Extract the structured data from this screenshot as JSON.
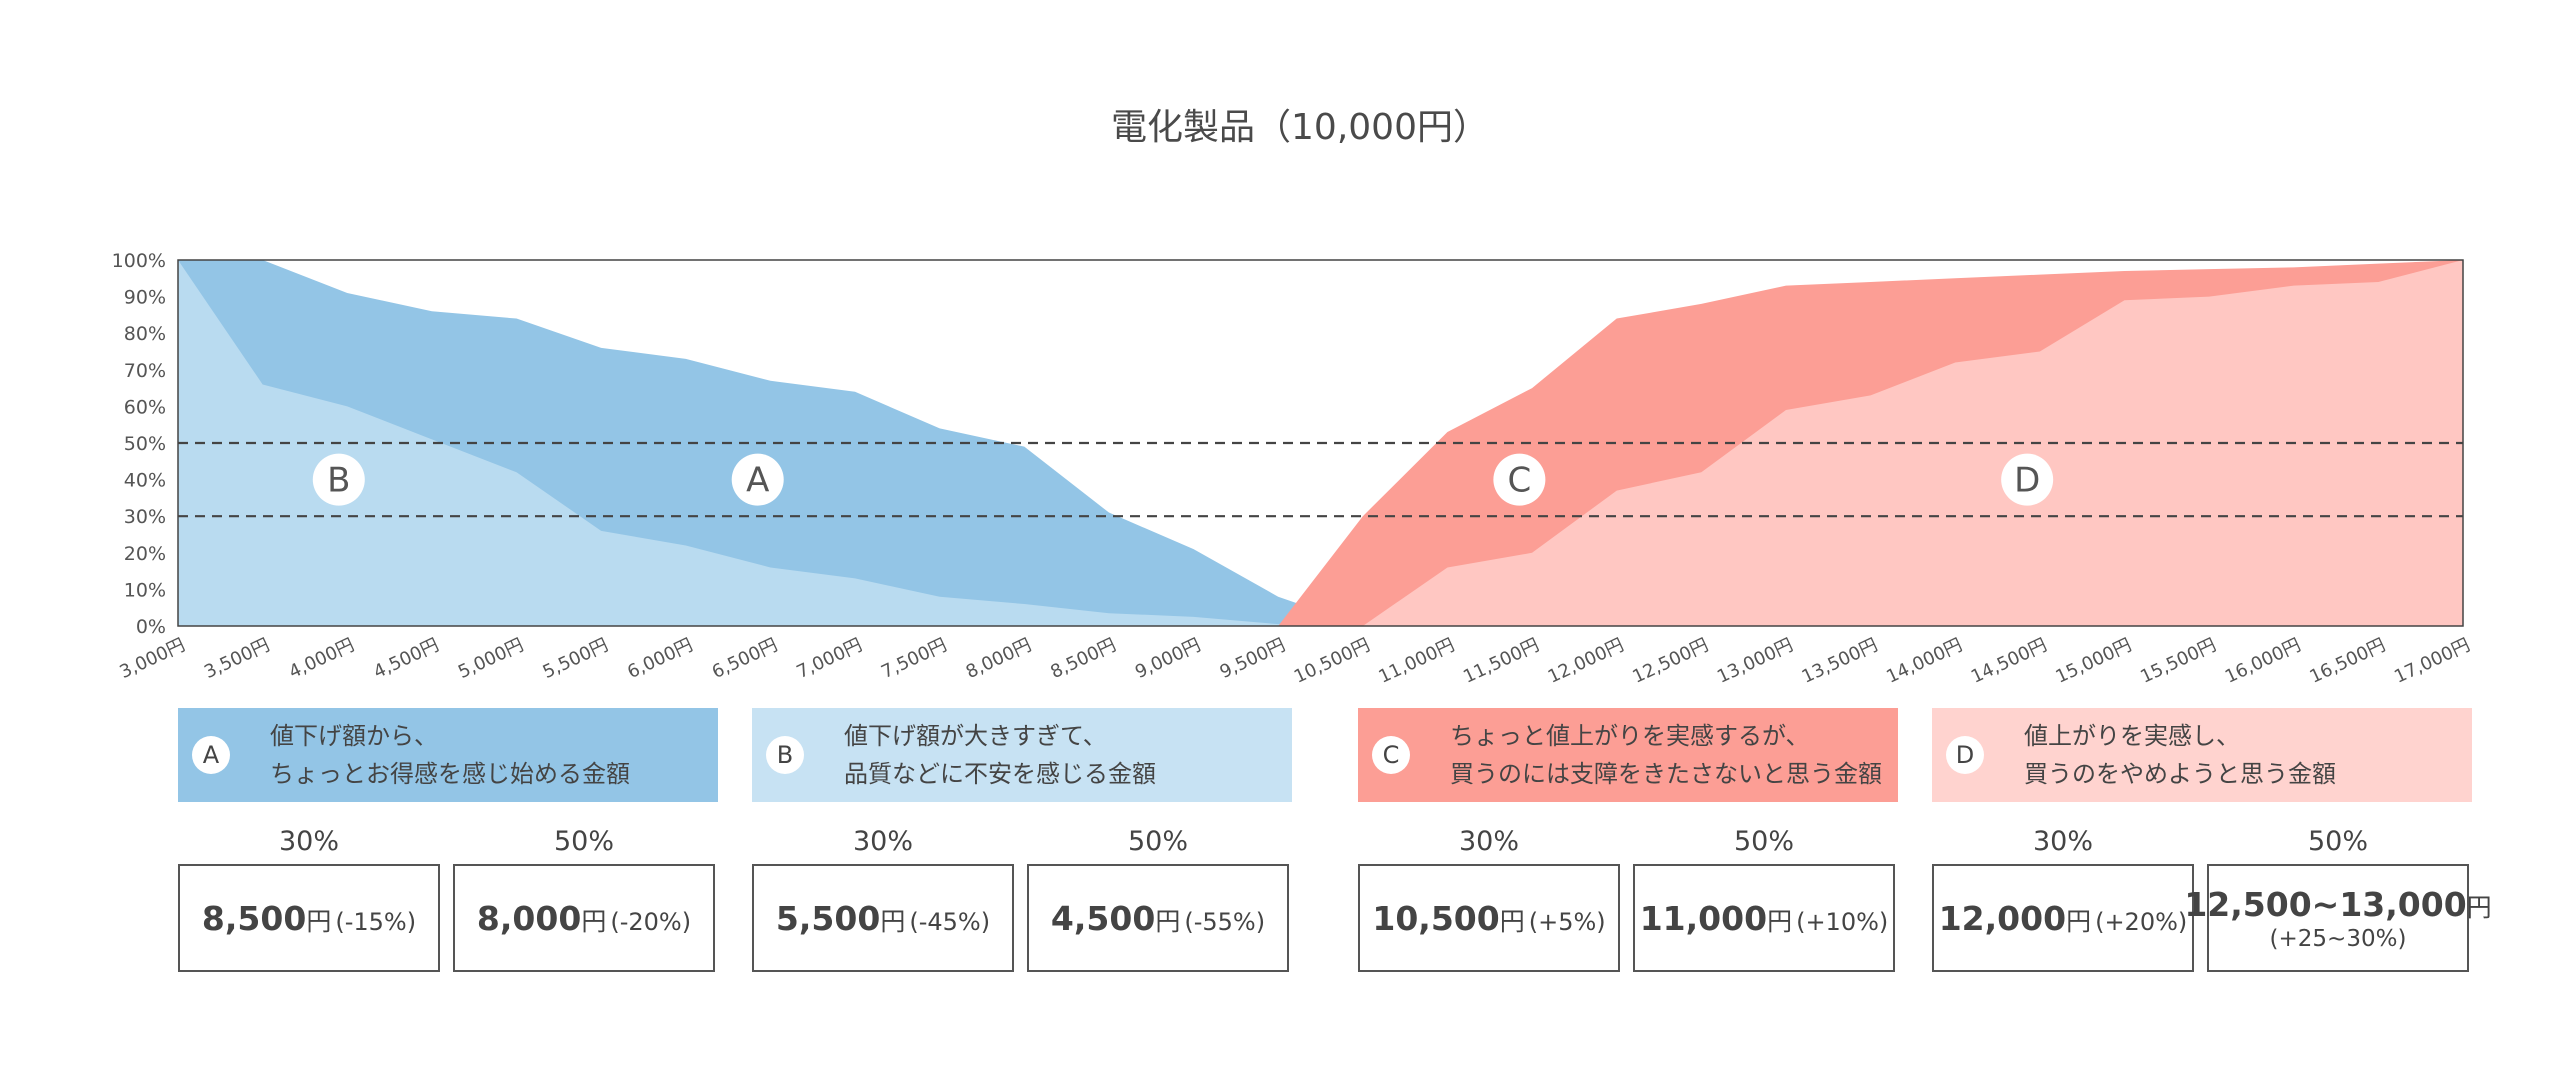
{
  "chart_data": {
    "type": "area",
    "title": "電化製品（10,000円）",
    "x_labels": [
      "3,000円",
      "3,500円",
      "4,000円",
      "4,500円",
      "5,000円",
      "5,500円",
      "6,000円",
      "6,500円",
      "7,000円",
      "7,500円",
      "8,000円",
      "8,500円",
      "9,000円",
      "9,500円",
      "10,500円",
      "11,000円",
      "11,500円",
      "12,000円",
      "12,500円",
      "13,000円",
      "13,500円",
      "14,000円",
      "14,500円",
      "15,000円",
      "15,500円",
      "16,000円",
      "16,500円",
      "17,000円"
    ],
    "y_ticks": [
      "0%",
      "10%",
      "20%",
      "30%",
      "40%",
      "50%",
      "60%",
      "70%",
      "80%",
      "90%",
      "100%"
    ],
    "ylim": [
      0,
      100
    ],
    "reference_lines": [
      30,
      50
    ],
    "series": [
      {
        "name": "A",
        "color": "#93c5e6",
        "values": [
          100,
          100,
          91,
          86,
          84,
          76,
          73,
          67,
          64,
          54,
          49,
          31,
          21,
          8,
          0,
          null,
          null,
          null,
          null,
          null,
          null,
          null,
          null,
          null,
          null,
          null,
          null,
          null
        ]
      },
      {
        "name": "B",
        "color": "#b9dbf0",
        "values": [
          100,
          66,
          60,
          51,
          42,
          26,
          22,
          16,
          13,
          8,
          6,
          3.5,
          2.5,
          0.5,
          0,
          null,
          null,
          null,
          null,
          null,
          null,
          null,
          null,
          null,
          null,
          null,
          null,
          null
        ]
      },
      {
        "name": "C",
        "color": "#fc9e95",
        "values": [
          null,
          null,
          null,
          null,
          null,
          null,
          null,
          null,
          null,
          null,
          null,
          null,
          null,
          0,
          30,
          53,
          65,
          84,
          88,
          93,
          94,
          95,
          96,
          97,
          97.5,
          98,
          99,
          100
        ]
      },
      {
        "name": "D",
        "color": "#ffc7c2",
        "values": [
          null,
          null,
          null,
          null,
          null,
          null,
          null,
          null,
          null,
          null,
          null,
          null,
          null,
          null,
          0,
          16,
          20,
          37,
          42,
          59,
          63,
          72,
          75,
          89,
          90,
          93,
          94,
          100
        ]
      }
    ],
    "area_labels": [
      "B",
      "A",
      "C",
      "D"
    ]
  },
  "legend": [
    {
      "badge": "A",
      "text": "値下げ額から、\nちょっとお得感を感じ始める金額",
      "color": "#93c5e6"
    },
    {
      "badge": "B",
      "text": "値下げ額が大きすぎて、\n品質などに不安を感じる金額",
      "color": "#c7e2f3"
    },
    {
      "badge": "C",
      "text": "ちょっと値上がりを実感するが、\n買うのには支障をきたさないと思う金額",
      "color": "#fc9e95"
    },
    {
      "badge": "D",
      "text": "値上がりを実感し、\n買うのをやめようと思う金額",
      "color": "#ffd3cf"
    }
  ],
  "pct_labels": [
    "30%",
    "50%",
    "30%",
    "50%",
    "30%",
    "50%",
    "30%",
    "50%"
  ],
  "values": [
    {
      "main": "8,500",
      "unit": "円",
      "change": "(-15%)"
    },
    {
      "main": "8,000",
      "unit": "円",
      "change": "(-20%)"
    },
    {
      "main": "5,500",
      "unit": "円",
      "change": "(-45%)"
    },
    {
      "main": "4,500",
      "unit": "円",
      "change": "(-55%)"
    },
    {
      "main": "10,500",
      "unit": "円",
      "change": "(+5%)"
    },
    {
      "main": "11,000",
      "unit": "円",
      "change": "(+10%)"
    },
    {
      "main": "12,000",
      "unit": "円",
      "change": "(+20%)"
    },
    {
      "main": "12,500~13,000",
      "unit": "円",
      "change": "",
      "sub": "(+25~30%)"
    }
  ]
}
